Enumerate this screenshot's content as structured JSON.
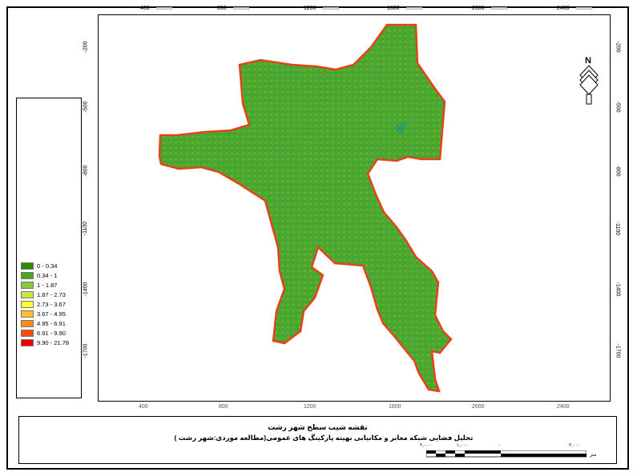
{
  "map": {
    "title": "نقشه شیب سطح شهر رشت",
    "subtitle": "تحلیل فضایی شبکه معابر و مکانیابی بهینه پارکینگ های عمومی(مطالعه موردی:شهر رشت )",
    "north_label": "N",
    "axes": {
      "x_top": [
        "400",
        "800",
        "1200",
        "1600",
        "2000",
        "2400"
      ],
      "x_bottom": [
        "400",
        "800",
        "1200",
        "1600",
        "2000",
        "2400"
      ],
      "y_left": [
        "-200",
        "-500",
        "-800",
        "-1100",
        "-1400",
        "-1700"
      ],
      "y_right": [
        "-200",
        "-500",
        "-800",
        "-1100",
        "-1400",
        "-1700"
      ]
    },
    "scale_bar": {
      "labels": [
        "۲,۰۰۰",
        "۱,۰۰۰",
        "۰",
        "۲,۰۰۰"
      ],
      "unit": "متر"
    },
    "legend": {
      "items": [
        {
          "label": "0 - 0.34",
          "color": "#2e8b00"
        },
        {
          "label": "0.34 - 1",
          "color": "#4fa61e"
        },
        {
          "label": "1 - 1.87",
          "color": "#8cc63f"
        },
        {
          "label": "1.87 - 2.73",
          "color": "#c8e63c"
        },
        {
          "label": "2.73 - 3.67",
          "color": "#ffff33"
        },
        {
          "label": "3.67 - 4.95",
          "color": "#ffc125"
        },
        {
          "label": "4.95 - 6.91",
          "color": "#ff8c1a"
        },
        {
          "label": "6.91 - 9.90",
          "color": "#ff4a0a"
        },
        {
          "label": "9.90 - 21.78",
          "color": "#ee0000"
        }
      ]
    },
    "colors": {
      "city_fill": "#4ea82c",
      "city_border": "#e8401a",
      "texture": "#1e9a8a"
    }
  }
}
